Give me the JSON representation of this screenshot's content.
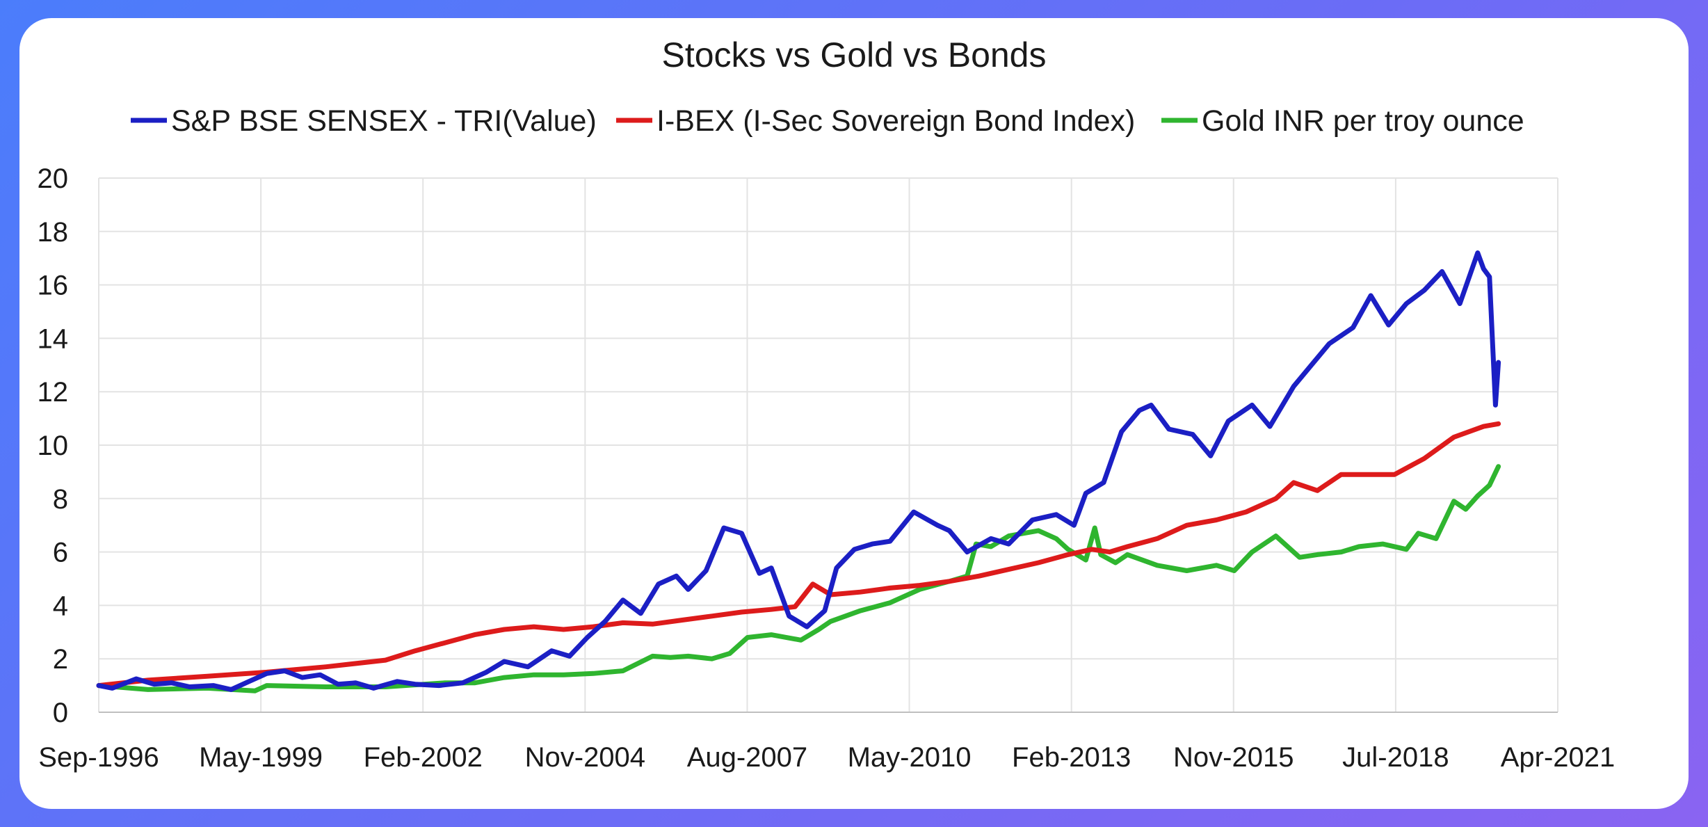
{
  "chart_data": {
    "type": "line",
    "title": "Stocks vs Gold vs Bonds",
    "xlabel": "",
    "ylabel": "",
    "ylim": [
      0,
      20
    ],
    "xlim": [
      "Sep-1996",
      "Apr-2021"
    ],
    "grid": true,
    "legend_position": "top",
    "y_ticks": [
      "0",
      "2",
      "4",
      "6",
      "8",
      "10",
      "12",
      "14",
      "16",
      "18",
      "20"
    ],
    "x_ticks": [
      "Sep-1996",
      "May-1999",
      "Feb-2002",
      "Nov-2004",
      "Aug-2007",
      "May-2010",
      "Feb-2013",
      "Nov-2015",
      "Jul-2018",
      "Apr-2021"
    ],
    "x_start_year": 1996.67,
    "x_end_year": 2021.25,
    "series": [
      {
        "name": "S&P BSE SENSEX - TRI(Value)",
        "color": "#1b1fc4",
        "x": [
          1996.67,
          1996.9,
          1997.3,
          1997.6,
          1997.9,
          1998.2,
          1998.6,
          1998.9,
          1999.2,
          1999.5,
          1999.8,
          2000.1,
          2000.4,
          2000.7,
          2001.0,
          2001.3,
          2001.7,
          2002.0,
          2002.4,
          2002.8,
          2003.2,
          2003.5,
          2003.9,
          2004.3,
          2004.6,
          2004.9,
          2005.2,
          2005.5,
          2005.8,
          2006.1,
          2006.4,
          2006.6,
          2006.9,
          2007.2,
          2007.5,
          2007.8,
          2008.0,
          2008.3,
          2008.6,
          2008.9,
          2009.1,
          2009.4,
          2009.7,
          2010.0,
          2010.4,
          2010.8,
          2011.0,
          2011.3,
          2011.7,
          2012.0,
          2012.4,
          2012.8,
          2013.1,
          2013.3,
          2013.6,
          2013.9,
          2014.2,
          2014.4,
          2014.7,
          2015.1,
          2015.4,
          2015.7,
          2016.1,
          2016.4,
          2016.8,
          2017.1,
          2017.4,
          2017.8,
          2018.1,
          2018.4,
          2018.7,
          2019.0,
          2019.3,
          2019.6,
          2019.9,
          2020.0,
          2020.1,
          2020.2,
          2020.25
        ],
        "values": [
          1.0,
          0.9,
          1.25,
          1.05,
          1.1,
          0.95,
          1.0,
          0.85,
          1.15,
          1.45,
          1.55,
          1.3,
          1.4,
          1.05,
          1.1,
          0.9,
          1.15,
          1.05,
          1.0,
          1.1,
          1.5,
          1.9,
          1.7,
          2.3,
          2.1,
          2.8,
          3.4,
          4.2,
          3.7,
          4.8,
          5.1,
          4.6,
          5.3,
          6.9,
          6.7,
          5.2,
          5.4,
          3.6,
          3.2,
          3.8,
          5.4,
          6.1,
          6.3,
          6.4,
          7.5,
          7.0,
          6.8,
          6.0,
          6.5,
          6.3,
          7.2,
          7.4,
          7.0,
          8.2,
          8.6,
          10.5,
          11.3,
          11.5,
          10.6,
          10.4,
          9.6,
          10.9,
          11.5,
          10.7,
          12.2,
          13.0,
          13.8,
          14.4,
          15.6,
          14.5,
          15.3,
          15.8,
          16.5,
          15.3,
          17.2,
          16.6,
          16.3,
          11.5,
          13.1
        ]
      },
      {
        "name": "I-BEX (I-Sec Sovereign Bond Index)",
        "color": "#dd1b1b",
        "x": [
          1996.67,
          1997.5,
          1998.5,
          1999.5,
          2000.5,
          2001.5,
          2002.0,
          2002.5,
          2003.0,
          2003.5,
          2004.0,
          2004.5,
          2005.0,
          2005.5,
          2006.0,
          2006.5,
          2007.0,
          2007.5,
          2008.0,
          2008.4,
          2008.7,
          2009.0,
          2009.5,
          2010.0,
          2010.5,
          2011.0,
          2011.5,
          2012.0,
          2012.5,
          2013.0,
          2013.4,
          2013.7,
          2014.0,
          2014.5,
          2015.0,
          2015.5,
          2016.0,
          2016.5,
          2016.8,
          2017.2,
          2017.6,
          2018.0,
          2018.5,
          2019.0,
          2019.5,
          2020.0,
          2020.25
        ],
        "values": [
          1.0,
          1.2,
          1.35,
          1.5,
          1.7,
          1.95,
          2.3,
          2.6,
          2.9,
          3.1,
          3.2,
          3.1,
          3.2,
          3.35,
          3.3,
          3.45,
          3.6,
          3.75,
          3.85,
          3.95,
          4.8,
          4.4,
          4.5,
          4.65,
          4.75,
          4.9,
          5.1,
          5.35,
          5.6,
          5.9,
          6.1,
          6.0,
          6.2,
          6.5,
          7.0,
          7.2,
          7.5,
          8.0,
          8.6,
          8.3,
          8.9,
          8.9,
          8.9,
          9.5,
          10.3,
          10.7,
          10.8
        ]
      },
      {
        "name": "Gold INR per troy ounce",
        "color": "#2fb52f",
        "x": [
          1996.67,
          1997.5,
          1998.5,
          1999.3,
          1999.5,
          2000.5,
          2001.5,
          2002.5,
          2003.0,
          2003.5,
          2004.0,
          2004.5,
          2005.0,
          2005.5,
          2006.0,
          2006.3,
          2006.6,
          2007.0,
          2007.3,
          2007.6,
          2008.0,
          2008.5,
          2008.8,
          2009.0,
          2009.5,
          2010.0,
          2010.5,
          2011.0,
          2011.3,
          2011.45,
          2011.7,
          2012.0,
          2012.5,
          2012.8,
          2013.0,
          2013.3,
          2013.45,
          2013.55,
          2013.8,
          2014.0,
          2014.5,
          2015.0,
          2015.5,
          2015.8,
          2016.1,
          2016.5,
          2016.9,
          2017.2,
          2017.6,
          2017.9,
          2018.3,
          2018.7,
          2018.9,
          2019.2,
          2019.5,
          2019.7,
          2019.9,
          2020.1,
          2020.25
        ],
        "values": [
          1.0,
          0.85,
          0.9,
          0.8,
          1.0,
          0.95,
          0.95,
          1.1,
          1.1,
          1.3,
          1.4,
          1.4,
          1.45,
          1.55,
          2.1,
          2.05,
          2.1,
          2.0,
          2.2,
          2.8,
          2.9,
          2.7,
          3.1,
          3.4,
          3.8,
          4.1,
          4.6,
          4.9,
          5.1,
          6.3,
          6.2,
          6.6,
          6.8,
          6.5,
          6.1,
          5.7,
          6.9,
          5.9,
          5.6,
          5.9,
          5.5,
          5.3,
          5.5,
          5.3,
          6.0,
          6.6,
          5.8,
          5.9,
          6.0,
          6.2,
          6.3,
          6.1,
          6.7,
          6.5,
          7.9,
          7.6,
          8.1,
          8.5,
          9.2
        ]
      }
    ]
  }
}
